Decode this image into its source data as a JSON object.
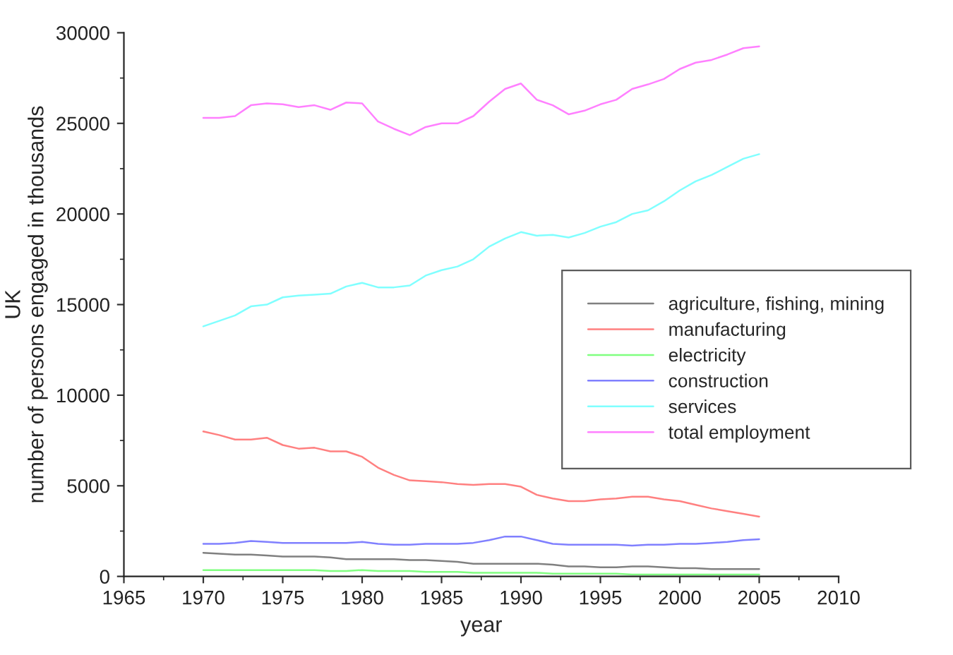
{
  "chart_data": {
    "type": "line",
    "xlabel": "year",
    "ylabel": "UK\nnumber of persons engaged in thousands",
    "x": [
      1970,
      1971,
      1972,
      1973,
      1974,
      1975,
      1976,
      1977,
      1978,
      1979,
      1980,
      1981,
      1982,
      1983,
      1984,
      1985,
      1986,
      1987,
      1988,
      1989,
      1990,
      1991,
      1992,
      1993,
      1994,
      1995,
      1996,
      1997,
      1998,
      1999,
      2000,
      2001,
      2002,
      2003,
      2004,
      2005
    ],
    "series": [
      {
        "name": "agriculture, fishing, mining",
        "color": "#808080",
        "values": [
          1300,
          1250,
          1200,
          1200,
          1150,
          1100,
          1100,
          1100,
          1050,
          950,
          950,
          950,
          950,
          900,
          900,
          850,
          800,
          700,
          700,
          700,
          700,
          700,
          650,
          550,
          550,
          500,
          500,
          550,
          550,
          500,
          450,
          450,
          400,
          400,
          400,
          400
        ]
      },
      {
        "name": "manufacturing",
        "color": "#ff8080",
        "values": [
          8000,
          7800,
          7550,
          7550,
          7650,
          7250,
          7050,
          7100,
          6900,
          6900,
          6600,
          6000,
          5600,
          5300,
          5250,
          5200,
          5100,
          5050,
          5100,
          5100,
          4950,
          4500,
          4300,
          4150,
          4150,
          4250,
          4300,
          4400,
          4400,
          4250,
          4150,
          3950,
          3750,
          3600,
          3450,
          3300
        ]
      },
      {
        "name": "electricity",
        "color": "#80ff80",
        "values": [
          350,
          350,
          350,
          350,
          350,
          350,
          350,
          350,
          300,
          300,
          350,
          300,
          300,
          300,
          250,
          250,
          250,
          200,
          200,
          200,
          200,
          200,
          150,
          150,
          150,
          150,
          150,
          100,
          100,
          100,
          100,
          100,
          100,
          100,
          100,
          100
        ]
      },
      {
        "name": "construction",
        "color": "#8080ff",
        "values": [
          1800,
          1800,
          1850,
          1950,
          1900,
          1850,
          1850,
          1850,
          1850,
          1850,
          1900,
          1800,
          1750,
          1750,
          1800,
          1800,
          1800,
          1850,
          2000,
          2200,
          2200,
          2000,
          1800,
          1750,
          1750,
          1750,
          1750,
          1700,
          1750,
          1750,
          1800,
          1800,
          1850,
          1900,
          2000,
          2050
        ]
      },
      {
        "name": "services",
        "color": "#80ffff",
        "values": [
          13800,
          14100,
          14400,
          14900,
          15000,
          15400,
          15500,
          15550,
          15600,
          16000,
          16200,
          15950,
          15950,
          16050,
          16600,
          16900,
          17100,
          17500,
          18200,
          18650,
          19000,
          18800,
          18850,
          18700,
          18950,
          19300,
          19550,
          20000,
          20200,
          20700,
          21300,
          21800,
          22150,
          22600,
          23050,
          23300
        ]
      },
      {
        "name": "total employment",
        "color": "#ff80ff",
        "values": [
          25300,
          25300,
          25400,
          26000,
          26100,
          26050,
          25900,
          26000,
          25750,
          26150,
          26100,
          25100,
          24700,
          24350,
          24800,
          25000,
          25000,
          25400,
          26200,
          26900,
          27200,
          26300,
          26000,
          25500,
          25700,
          26050,
          26300,
          26900,
          27150,
          27450,
          28000,
          28350,
          28500,
          28800,
          29150,
          29250
        ]
      }
    ],
    "xlim": [
      1965,
      2010
    ],
    "xticks": [
      1965,
      1970,
      1975,
      1980,
      1985,
      1990,
      1995,
      2000,
      2005,
      2010
    ],
    "ylim": [
      0,
      30000
    ],
    "yticks": [
      0,
      5000,
      10000,
      15000,
      20000,
      25000,
      30000
    ],
    "grid": false,
    "legend": "right",
    "marker": "none",
    "line_style": "solid"
  }
}
